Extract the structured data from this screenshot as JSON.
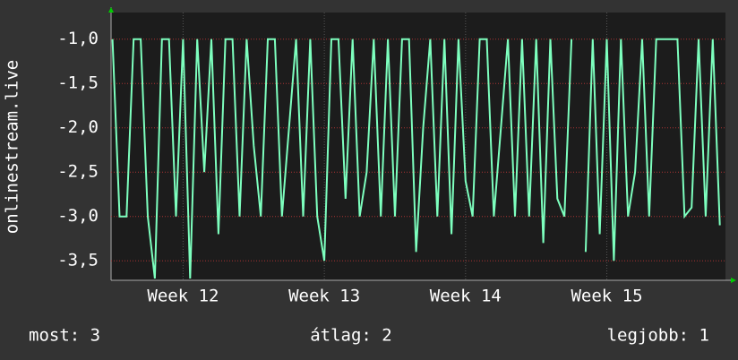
{
  "chart_data": {
    "type": "line",
    "y_label": "onlinestream.live",
    "x": [
      11.5,
      11.55,
      11.6,
      11.65,
      11.7,
      11.75,
      11.8,
      11.85,
      11.9,
      11.95,
      12,
      12.05,
      12.1,
      12.15,
      12.2,
      12.25,
      12.3,
      12.35,
      12.4,
      12.45,
      12.5,
      12.55,
      12.6,
      12.65,
      12.7,
      12.75,
      12.8,
      12.85,
      12.9,
      12.95,
      13,
      13.05,
      13.1,
      13.15,
      13.2,
      13.25,
      13.3,
      13.35,
      13.4,
      13.45,
      13.5,
      13.55,
      13.6,
      13.65,
      13.7,
      13.75,
      13.8,
      13.85,
      13.9,
      13.95,
      14,
      14.05,
      14.1,
      14.15,
      14.2,
      14.25,
      14.3,
      14.35,
      14.4,
      14.45,
      14.5,
      14.55,
      14.6,
      14.65,
      14.7,
      14.75,
      14.8,
      14.85,
      14.9,
      14.95,
      15,
      15.05,
      15.1,
      15.15,
      15.2,
      15.25,
      15.3,
      15.35,
      15.4,
      15.45,
      15.5,
      15.55,
      15.6,
      15.65,
      15.7,
      15.75,
      15.8
    ],
    "series": [
      {
        "color": "#7dffbe",
        "values": [
          -1,
          -3,
          -3,
          -1,
          -1,
          -3,
          -3.7,
          -1,
          -1,
          -3,
          -1,
          -3.7,
          -1,
          -2.5,
          -1,
          -3.2,
          -1,
          -1,
          -3,
          -1,
          -2.2,
          -3,
          -1,
          -1,
          -3,
          -2,
          -1,
          -3,
          -1,
          -3,
          -3.5,
          -1,
          -1,
          -2.8,
          -1,
          -3,
          -2.5,
          -1,
          -3,
          -1,
          -3,
          -1,
          -1,
          -3.4,
          -2,
          -1,
          -3,
          -1,
          -3.2,
          -1,
          -2.6,
          -3,
          -1,
          -1,
          -3,
          -2,
          -1,
          -3,
          -1,
          -3,
          -1,
          -3.3,
          -1,
          -2.8,
          -3,
          -1,
          null,
          -3.4,
          -1,
          -3.2,
          -1,
          -3.5,
          -1,
          -3,
          -2.5,
          -1,
          -3,
          -1,
          -1,
          -1,
          -1,
          -3,
          -2.9,
          -1,
          -3,
          -1,
          -3.1
        ]
      }
    ],
    "xlim": [
      11.49,
      15.84
    ],
    "xticks": [
      {
        "value": 12,
        "label": "Week 12"
      },
      {
        "value": 13,
        "label": "Week 13"
      },
      {
        "value": 14,
        "label": "Week 14"
      },
      {
        "value": 15,
        "label": "Week 15"
      }
    ],
    "ylim": [
      -3.72,
      -0.7
    ],
    "yticks": [
      {
        "value": -1,
        "label": "-1,0"
      },
      {
        "value": -1.5,
        "label": "-1,5"
      },
      {
        "value": -2,
        "label": "-2,0"
      },
      {
        "value": -2.5,
        "label": "-2,5"
      },
      {
        "value": -3,
        "label": "-3,0"
      },
      {
        "value": -3.5,
        "label": "-3,5"
      }
    ],
    "grid": true,
    "legend": [
      "most: 3",
      "átlag: 2",
      "legjobb: 1"
    ]
  }
}
